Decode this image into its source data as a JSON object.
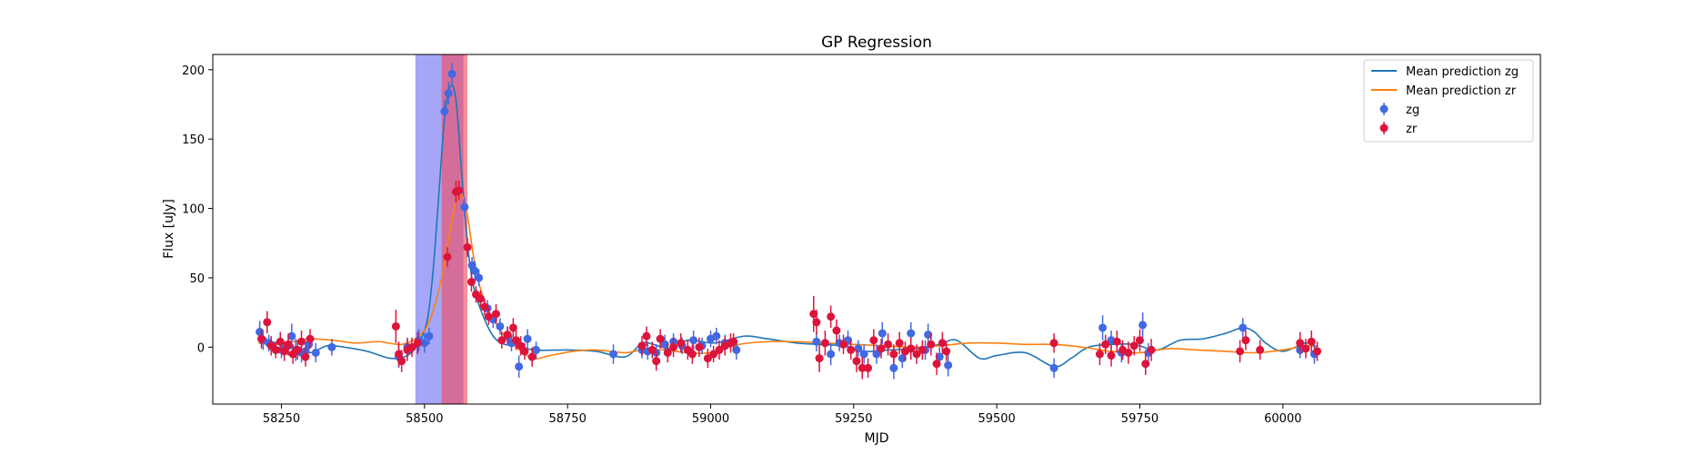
{
  "chart_data": {
    "type": "scatter",
    "title": "GP Regression",
    "xlabel": "MJD",
    "ylabel": "Flux [uJy]",
    "xlim": [
      58130,
      60450
    ],
    "ylim": [
      -41,
      211
    ],
    "x_ticks": [
      58250,
      58500,
      58750,
      59000,
      59250,
      59500,
      59750,
      60000
    ],
    "y_ticks": [
      0,
      50,
      100,
      150,
      200
    ],
    "grid": false,
    "legend_position": "top-right",
    "legend": [
      "Mean prediction zg",
      "Mean prediction zr",
      "zg",
      "zr"
    ],
    "colors": {
      "mean_zg": "#1f77b4",
      "mean_zr": "#ff7f0e",
      "zg": "#4169e1",
      "zr": "#dc143c",
      "span_zg": "#6f6ff5",
      "span_zr": "#f04b5e"
    },
    "shaded_regions": [
      {
        "band": "zg",
        "x": [
          58484,
          58568
        ]
      },
      {
        "band": "zr",
        "x": [
          58530,
          58575
        ]
      }
    ],
    "series": [
      {
        "name": "Mean prediction zg",
        "kind": "line",
        "color": "#1f77b4",
        "x": [
          58210,
          58240,
          58270,
          58300,
          58330,
          58360,
          58400,
          58440,
          58470,
          58490,
          58505,
          58515,
          58525,
          58535,
          58545,
          58555,
          58565,
          58575,
          58585,
          58600,
          58620,
          58640,
          58660,
          58690,
          58750,
          58800,
          58850,
          58880,
          58900,
          58930,
          58960,
          59000,
          59020,
          59060,
          59100,
          59150,
          59190,
          59230,
          59270,
          59310,
          59360,
          59400,
          59430,
          59470,
          59500,
          59550,
          59600,
          59630,
          59660,
          59700,
          59740,
          59780,
          59820,
          59860,
          59900,
          59930,
          59950,
          59970,
          60000,
          60040,
          60060
        ],
        "y": [
          7,
          3,
          -1,
          -4,
          1,
          0,
          -3,
          -8,
          -6,
          3,
          20,
          55,
          110,
          165,
          188,
          178,
          125,
          75,
          45,
          25,
          8,
          2,
          2,
          -2,
          -2,
          -3,
          -7,
          3,
          2,
          -1,
          5,
          3,
          4,
          8,
          6,
          3,
          2,
          1,
          -3,
          -2,
          -1,
          2,
          5,
          -8,
          -6,
          -4,
          -14,
          -8,
          0,
          2,
          2,
          -2,
          5,
          6,
          10,
          14,
          11,
          3,
          -3,
          3,
          0
        ]
      },
      {
        "name": "Mean prediction zr",
        "kind": "line",
        "color": "#ff7f0e",
        "x": [
          58210,
          58240,
          58270,
          58300,
          58340,
          58380,
          58420,
          58460,
          58490,
          58510,
          58530,
          58545,
          58555,
          58565,
          58575,
          58590,
          58610,
          58640,
          58660,
          58690,
          58720,
          58760,
          58800,
          58850,
          58880,
          58920,
          58960,
          59000,
          59050,
          59100,
          59150,
          59200,
          59250,
          59300,
          59350,
          59400,
          59450,
          59500,
          59550,
          59600,
          59650,
          59700,
          59750,
          59800,
          59850,
          59900,
          59950,
          60000,
          60040,
          60060
        ],
        "y": [
          3,
          2,
          4,
          6,
          5,
          3,
          4,
          2,
          8,
          20,
          50,
          85,
          105,
          110,
          95,
          55,
          28,
          8,
          0,
          -8,
          -6,
          -3,
          -2,
          -4,
          -2,
          -2,
          -4,
          -4,
          2,
          4,
          4,
          3,
          2,
          1,
          0,
          1,
          3,
          3,
          2,
          2,
          0,
          -3,
          -4,
          -1,
          -2,
          -3,
          -4,
          -2,
          1,
          0
        ]
      },
      {
        "name": "zg",
        "kind": "errorbar",
        "color": "#4169e1",
        "x": [
          58212,
          58218,
          58228,
          58250,
          58262,
          58268,
          58275,
          58285,
          58292,
          58298,
          58310,
          58338,
          58455,
          58470,
          58490,
          58500,
          58508,
          58535,
          58542,
          58548,
          58570,
          58583,
          58588,
          58595,
          58610,
          58620,
          58632,
          58645,
          58652,
          58665,
          58680,
          58695,
          58830,
          58880,
          58890,
          58905,
          58920,
          58935,
          58950,
          58970,
          58985,
          59000,
          59010,
          59025,
          59045,
          59185,
          59210,
          59225,
          59240,
          59258,
          59268,
          59290,
          59300,
          59320,
          59335,
          59350,
          59375,
          59380,
          59400,
          59415,
          59600,
          59685,
          59700,
          59718,
          59755,
          59765,
          59930,
          60030,
          60055
        ],
        "y": [
          11,
          5,
          3,
          -2,
          1,
          8,
          -2,
          -4,
          -3,
          2,
          -4,
          0,
          -7,
          0,
          5,
          3,
          8,
          170,
          183,
          197,
          101,
          59,
          55,
          50,
          28,
          20,
          15,
          8,
          3,
          -14,
          6,
          -2,
          -5,
          -2,
          -3,
          -4,
          2,
          4,
          1,
          5,
          1,
          6,
          8,
          3,
          -2,
          4,
          -5,
          3,
          5,
          -1,
          -5,
          -5,
          10,
          -15,
          -8,
          10,
          -2,
          9,
          -7,
          -13,
          -15,
          14,
          5,
          -4,
          16,
          -4,
          14,
          -2,
          -5
        ],
        "err": [
          8,
          7,
          6,
          6,
          7,
          9,
          8,
          7,
          7,
          6,
          7,
          6,
          8,
          7,
          8,
          7,
          6,
          8,
          8,
          8,
          7,
          6,
          7,
          6,
          6,
          6,
          6,
          7,
          6,
          8,
          7,
          6,
          7,
          6,
          6,
          6,
          7,
          6,
          6,
          7,
          6,
          6,
          6,
          6,
          7,
          7,
          8,
          6,
          7,
          6,
          7,
          7,
          8,
          8,
          7,
          8,
          7,
          8,
          7,
          8,
          7,
          9,
          7,
          7,
          9,
          7,
          7,
          6,
          7
        ]
      },
      {
        "name": "zr",
        "kind": "errorbar",
        "color": "#dc143c",
        "x": [
          58215,
          58225,
          58232,
          58240,
          58248,
          58255,
          58262,
          58270,
          58278,
          58285,
          58292,
          58300,
          58450,
          58455,
          58460,
          58470,
          58478,
          58488,
          58540,
          58555,
          58560,
          58575,
          58582,
          58590,
          58598,
          58605,
          58612,
          58625,
          58635,
          58645,
          58655,
          58660,
          58668,
          58675,
          58688,
          58880,
          58888,
          58898,
          58905,
          58912,
          58925,
          58935,
          58948,
          58960,
          58968,
          58980,
          58995,
          59005,
          59015,
          59025,
          59035,
          59040,
          59180,
          59185,
          59190,
          59200,
          59210,
          59220,
          59232,
          59245,
          59255,
          59265,
          59275,
          59285,
          59298,
          59310,
          59320,
          59330,
          59340,
          59350,
          59360,
          59370,
          59385,
          59395,
          59405,
          59412,
          59600,
          59680,
          59690,
          59700,
          59710,
          59720,
          59730,
          59740,
          59750,
          59760,
          59770,
          59925,
          59935,
          59960,
          60030,
          60040,
          60050,
          60060
        ],
        "y": [
          6,
          18,
          1,
          -2,
          4,
          -3,
          2,
          -5,
          -2,
          4,
          -7,
          6,
          15,
          -5,
          -10,
          -2,
          0,
          3,
          65,
          112,
          113,
          72,
          47,
          38,
          35,
          29,
          22,
          24,
          5,
          9,
          14,
          5,
          1,
          -3,
          -7,
          1,
          8,
          -2,
          -10,
          6,
          -4,
          0,
          3,
          -2,
          -5,
          0,
          -8,
          -5,
          -2,
          1,
          3,
          4,
          24,
          18,
          -8,
          3,
          22,
          12,
          2,
          -2,
          -10,
          -15,
          -15,
          5,
          -1,
          2,
          -5,
          3,
          -3,
          -1,
          -5,
          -2,
          2,
          -12,
          3,
          -3,
          3,
          -5,
          2,
          -6,
          4,
          -2,
          -4,
          1,
          5,
          -12,
          -2,
          -3,
          5,
          -2,
          3,
          -1,
          4,
          -3
        ],
        "err": [
          7,
          8,
          7,
          6,
          7,
          7,
          8,
          7,
          7,
          8,
          7,
          7,
          12,
          9,
          8,
          8,
          7,
          8,
          7,
          8,
          7,
          7,
          7,
          6,
          6,
          6,
          6,
          7,
          6,
          6,
          7,
          7,
          7,
          6,
          7,
          7,
          7,
          6,
          7,
          7,
          7,
          7,
          7,
          7,
          7,
          7,
          7,
          6,
          7,
          7,
          7,
          6,
          13,
          9,
          10,
          9,
          8,
          8,
          7,
          7,
          8,
          8,
          7,
          8,
          7,
          8,
          7,
          8,
          7,
          8,
          7,
          7,
          8,
          8,
          8,
          7,
          7,
          8,
          7,
          8,
          8,
          7,
          8,
          7,
          8,
          8,
          8,
          8,
          7,
          7,
          8,
          7,
          8,
          7
        ]
      }
    ]
  }
}
